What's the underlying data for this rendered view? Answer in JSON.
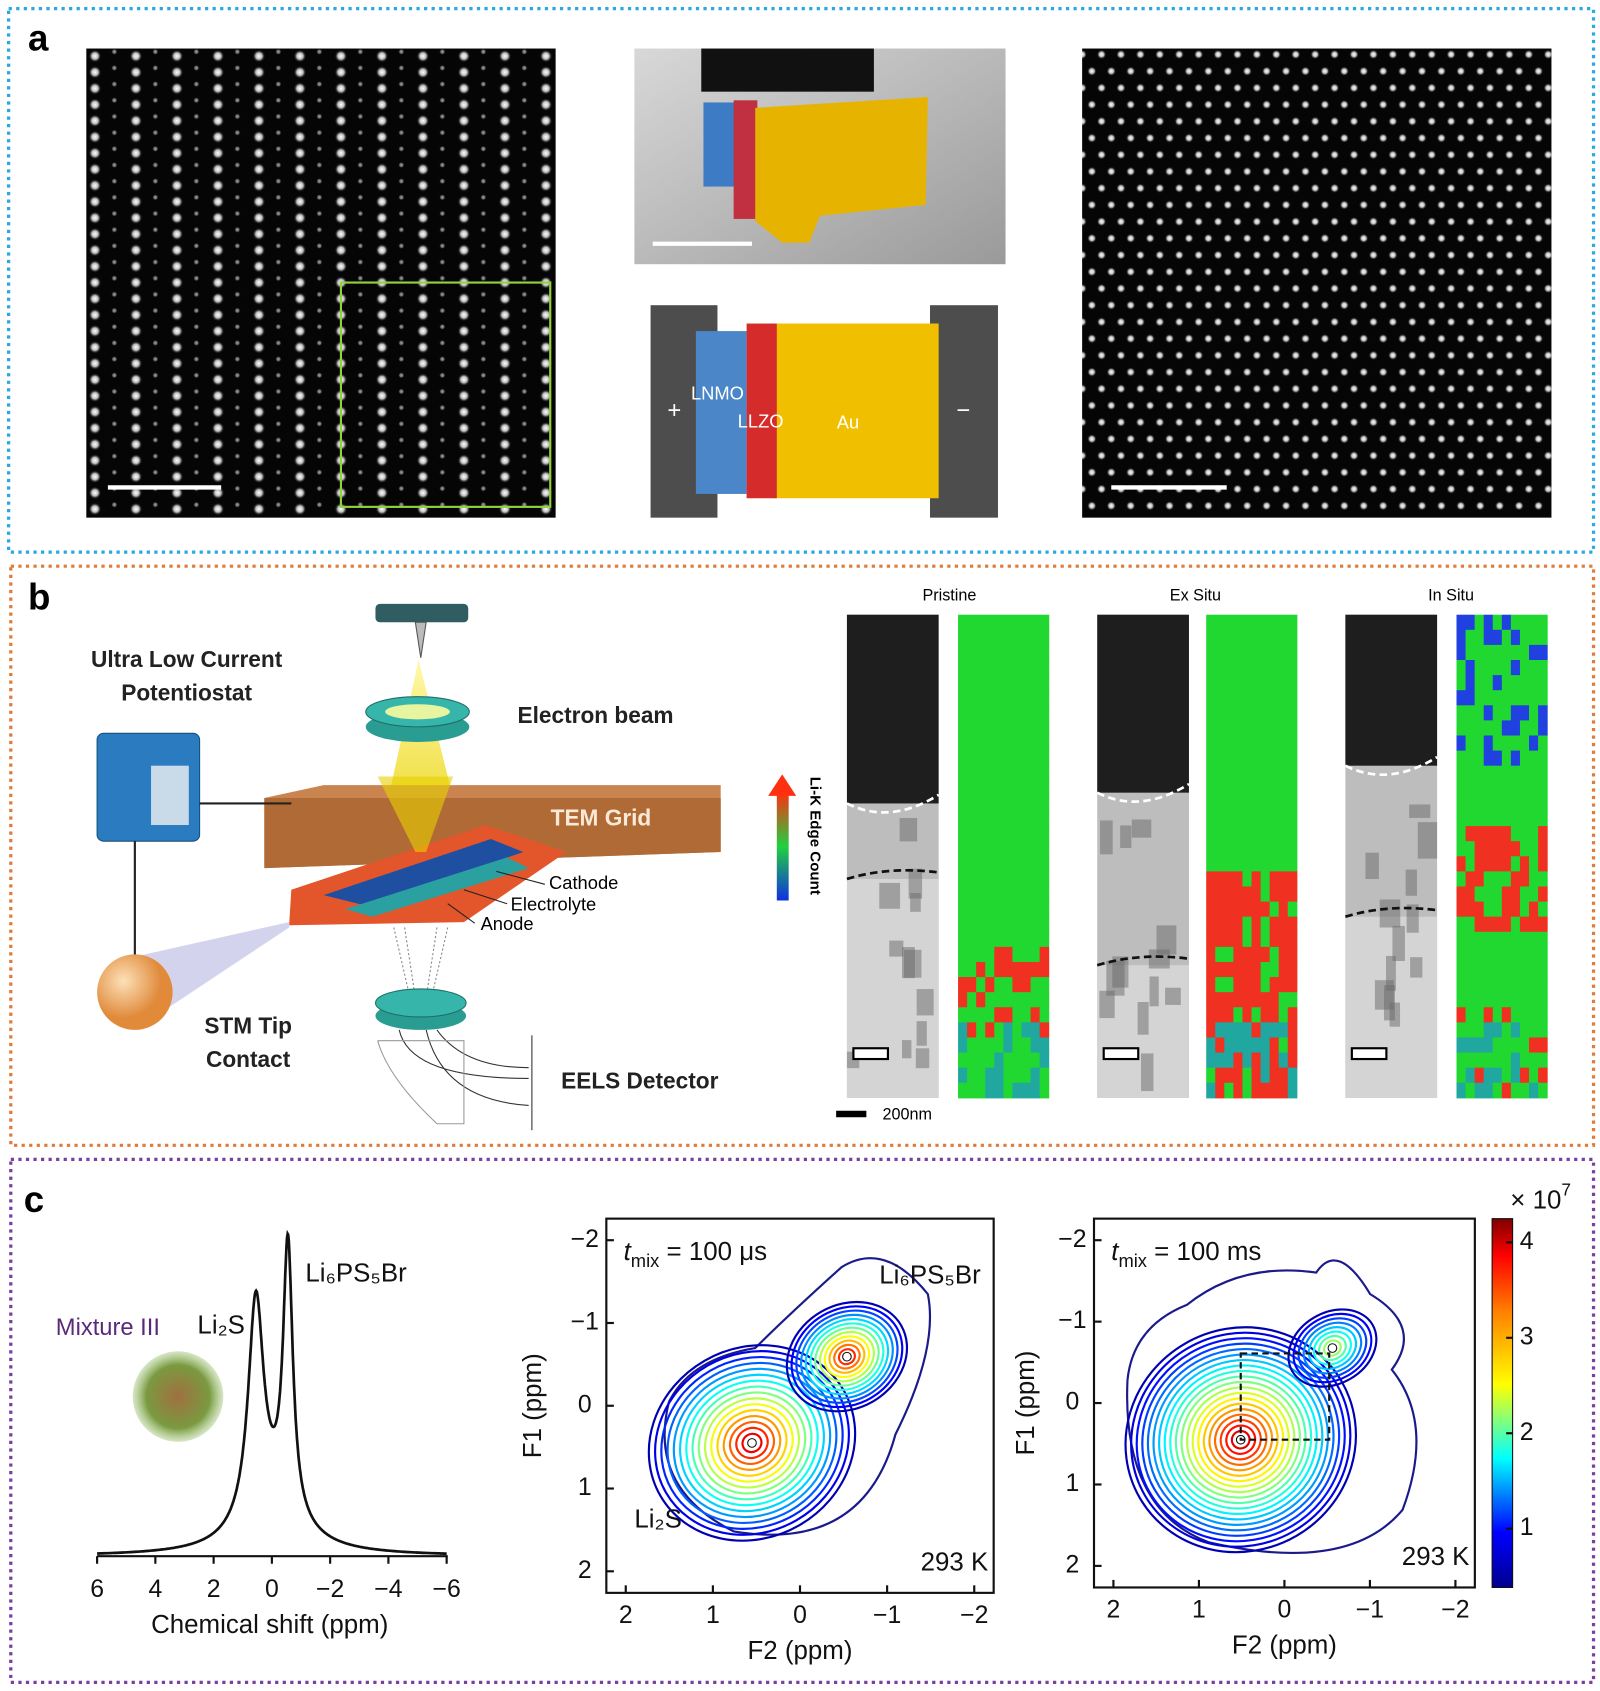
{
  "panel_a": {
    "label": "a",
    "schematic": {
      "plus": "+",
      "minus": "−",
      "lnmo": "LNMO",
      "llzo": "LLZO",
      "au": "Au"
    }
  },
  "panel_b": {
    "label": "b",
    "potentiostat": [
      "Ultra Low Current",
      "Potentiostat"
    ],
    "electron_beam": "Electron beam",
    "tem_grid": "TEM Grid",
    "cathode": "Cathode",
    "electrolyte": "Electrolyte",
    "anode": "Anode",
    "stm_tip": [
      "STM Tip",
      "Contact"
    ],
    "eels_detector": "EELS Detector",
    "colorbar_label": "Li-K Edge Count",
    "maps": [
      "Pristine",
      "Ex Situ",
      "In Situ"
    ],
    "scale_bar": "200nm"
  },
  "panel_c": {
    "label": "c",
    "spectrum": {
      "sample": "Mixture III",
      "peak_li2s": "Li₂S",
      "peak_argyrodite": "Li₆PS₅Br",
      "x_label": "Chemical shift (ppm)",
      "x_ticks": [
        "6",
        "4",
        "2",
        "0",
        "−2",
        "−4",
        "−6"
      ]
    },
    "maps": [
      {
        "mix": [
          "t",
          "mix",
          " = 100 μs"
        ],
        "peak_argyrodite": "Li₆PS₅Br",
        "peak_li2s": "Li₂S",
        "temperature": "293 K",
        "y_label": "F1 (ppm)",
        "x_label": "F2 (ppm)",
        "y_ticks": [
          "−2",
          "−1",
          "0",
          "1",
          "2"
        ],
        "x_ticks": [
          "2",
          "1",
          "0",
          "−1",
          "−2"
        ]
      },
      {
        "mix": [
          "t",
          "mix",
          " = 100 ms"
        ],
        "temperature": "293 K",
        "y_label": "F1 (ppm)",
        "x_label": "F2 (ppm)",
        "y_ticks": [
          "−2",
          "−1",
          "0",
          "1",
          "2"
        ],
        "x_ticks": [
          "2",
          "1",
          "0",
          "−1",
          "−2"
        ]
      }
    ],
    "colorbar": {
      "multiplier": [
        "× 10",
        "7"
      ],
      "ticks": [
        "4",
        "3",
        "2",
        "1"
      ]
    }
  }
}
